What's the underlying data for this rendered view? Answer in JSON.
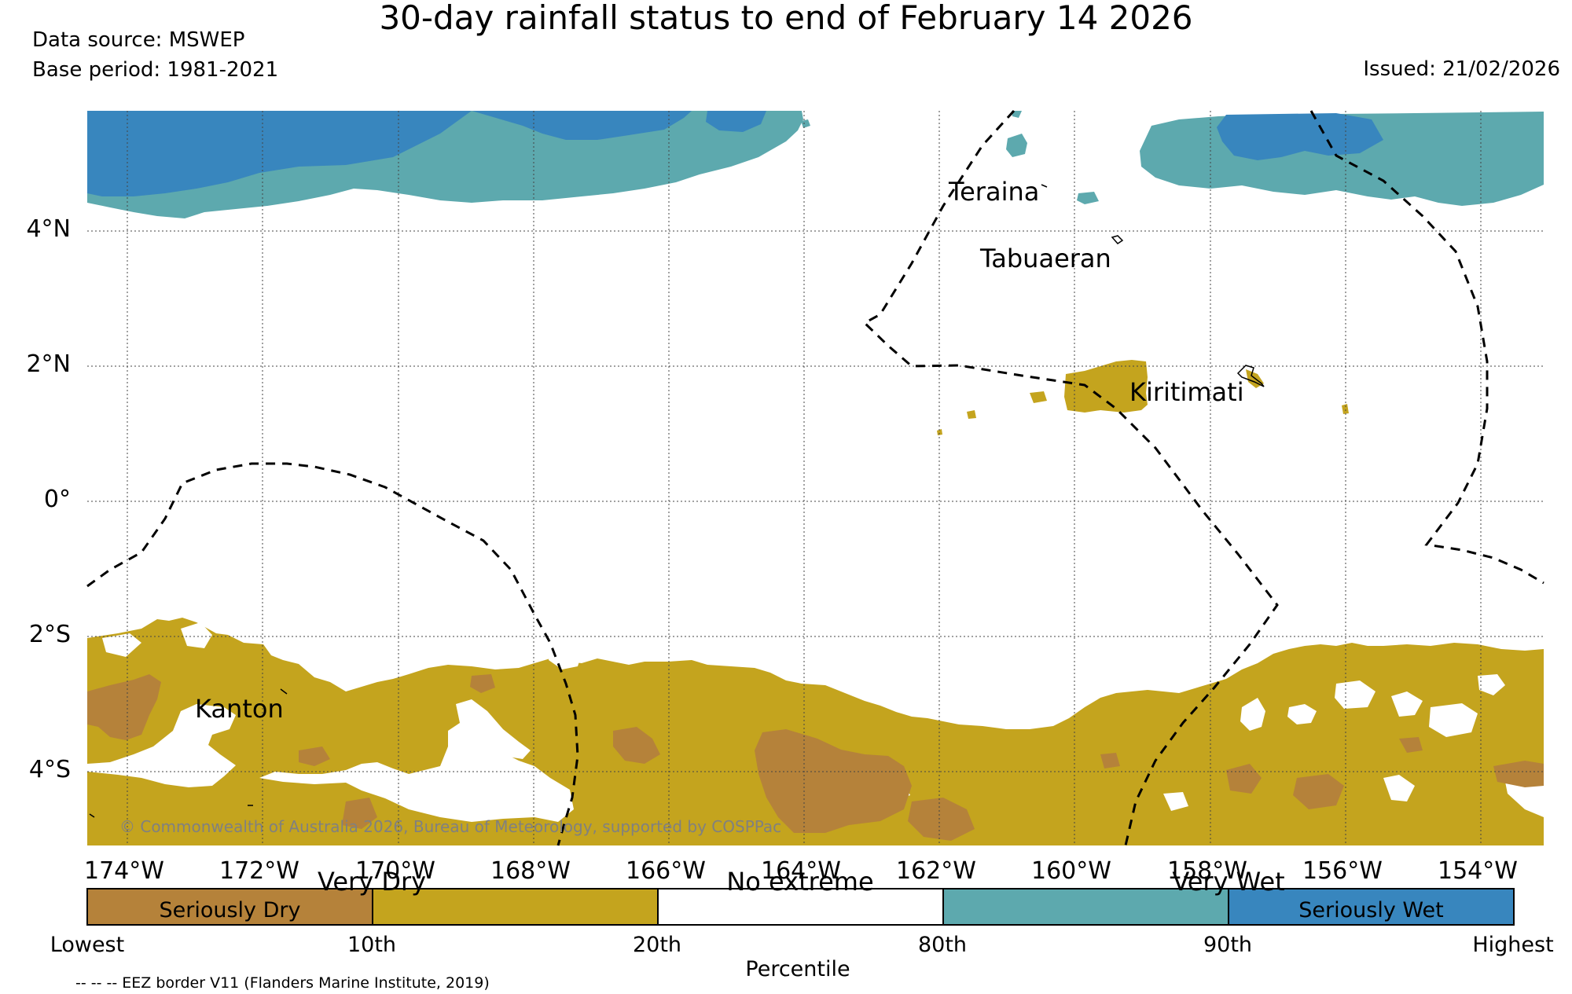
{
  "header": {
    "title": "30-day rainfall status to end of February 14 2026",
    "data_source": "Data source: MSWEP",
    "base_period": "Base period: 1981-2021",
    "issued": "Issued: 21/02/2026"
  },
  "map": {
    "lat_labels": [
      "4°N",
      "2°N",
      "0°",
      "2°S",
      "4°S"
    ],
    "lon_labels": [
      "174°W",
      "172°W",
      "170°W",
      "168°W",
      "166°W",
      "164°W",
      "162°W",
      "160°W",
      "158°W",
      "156°W",
      "154°W"
    ],
    "places": {
      "teraina": "Teraina",
      "tabuaeran": "Tabuaeran",
      "kiritimati": "Kiritimati",
      "kanton": "Kanton"
    },
    "copyright": "© Commonwealth of Australia 2026, Bureau of Meteorology, supported by COSPPac"
  },
  "legend": {
    "categories": [
      {
        "label": "Seriously Dry",
        "color": "#b5823a"
      },
      {
        "label": "",
        "color": "#c4a41e"
      },
      {
        "label": "",
        "color": "#ffffff"
      },
      {
        "label": "",
        "color": "#5da9ae"
      },
      {
        "label": "Seriously Wet",
        "color": "#3886be"
      }
    ],
    "above_labels": {
      "very_dry": "Very Dry",
      "no_extreme": "No extreme",
      "very_wet": "Very Wet"
    },
    "percentiles": [
      "Lowest",
      "10th",
      "20th",
      "80th",
      "90th",
      "Highest"
    ],
    "axis_title": "Percentile",
    "eez_note": "-- -- -- EEZ border V11 (Flanders Marine Institute, 2019)"
  },
  "colors": {
    "seriously_dry": "#b5823a",
    "very_dry": "#c4a41e",
    "very_wet": "#5da9ae",
    "seriously_wet": "#3886be"
  }
}
